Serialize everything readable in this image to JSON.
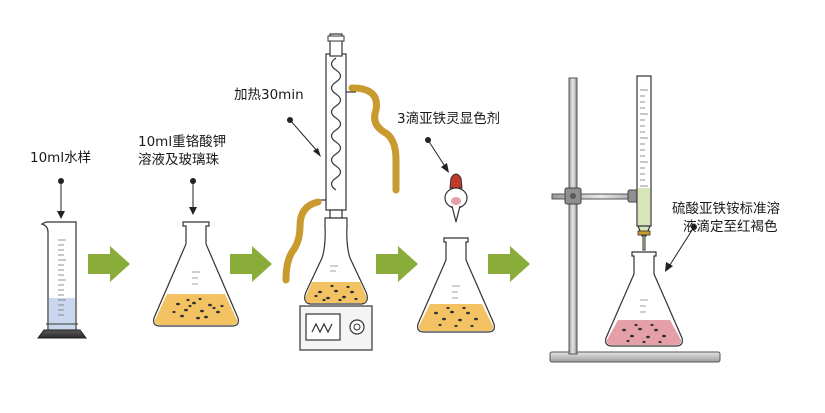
{
  "steps": {
    "step1": {
      "label": "10ml水样"
    },
    "step2": {
      "label_line1": "10ml重铬酸钾",
      "label_line2": "溶液及玻璃珠"
    },
    "step3": {
      "label": "加热30min"
    },
    "step4": {
      "label": "3滴亚铁灵显色剂"
    },
    "step5": {
      "label_line1": "硫酸亚铁铵标准溶",
      "label_line2": "液滴定至红褐色"
    }
  },
  "colors": {
    "arrow": "#8aac3a",
    "solution_yellow": "#f3c363",
    "solution_pink": "#e4a0a6",
    "tube_gold": "#c99a2e",
    "titrant_green": "#d6e6b8",
    "water_blue": "#c9d8ee",
    "glass": "#ffffff",
    "outline": "#333333"
  }
}
